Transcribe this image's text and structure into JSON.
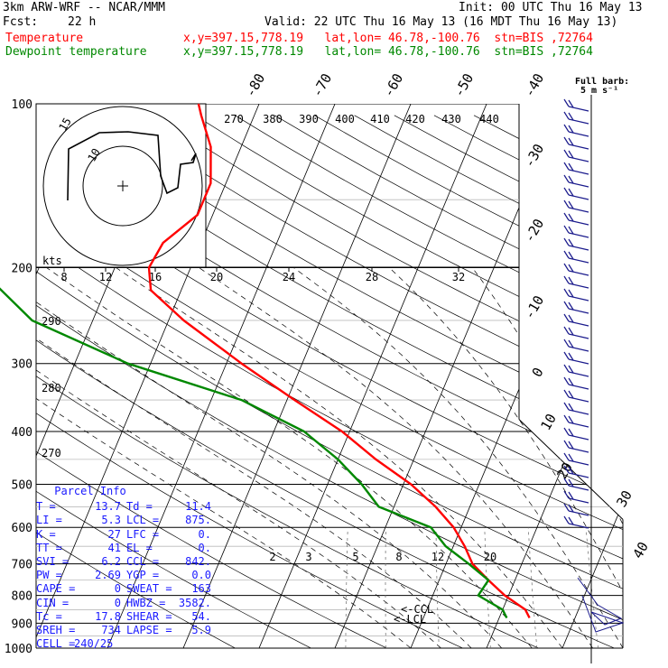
{
  "header": {
    "model": "3km ARW-WRF -- NCAR/MMM",
    "init": "Init: 00 UTC Thu 16 May 13",
    "fcst_label": "Fcst:",
    "fcst_value": "22 h",
    "valid": "Valid: 22 UTC Thu 16 May 13 (16 MDT Thu 16 May 13)",
    "temp_label": "Temperature",
    "temp_info": "x,y=397.15,778.19   lat,lon= 46.78,-100.76  stn=BIS ,72764",
    "dew_label": "Dewpoint temperature",
    "dew_info": "x,y=397.15,778.19   lat,lon= 46.78,-100.76  stn=BIS ,72764"
  },
  "barb_legend": {
    "line1": "Full barb:",
    "line2": "5 m s⁻¹"
  },
  "parcel_info": {
    "title": "Parcel Info",
    "rows": [
      {
        "l1": "T",
        "v1": "13.7",
        "l2": "Td",
        "v2": "11.4"
      },
      {
        "l1": "LI",
        "v1": "5.3",
        "l2": "LCL",
        "v2": "875."
      },
      {
        "l1": "K",
        "v1": "27",
        "l2": "LFC",
        "v2": "0."
      },
      {
        "l1": "TT",
        "v1": "41",
        "l2": "EL",
        "v2": "0."
      },
      {
        "l1": "SVI",
        "v1": "6.2",
        "l2": "CCL",
        "v2": "842."
      },
      {
        "l1": "PW",
        "v1": "2.69",
        "l2": "YGP",
        "v2": "0.0"
      },
      {
        "l1": "CAPE",
        "v1": "0",
        "l2": "SWEAT",
        "v2": "163"
      },
      {
        "l1": "CIN",
        "v1": "0",
        "l2": "HWBZ",
        "v2": "3582."
      },
      {
        "l1": "Tc",
        "v1": "17.8",
        "l2": "SHEAR",
        "v2": "54."
      },
      {
        "l1": "SREH",
        "v1": "734",
        "l2": "LAPSE",
        "v2": "5.9"
      },
      {
        "l1": "CELL",
        "v1": "240/25",
        "l2": "",
        "v2": ""
      }
    ]
  },
  "colors": {
    "temperature": "#ff0000",
    "dewpoint": "#008800",
    "axes": "#000000",
    "parcel_text": "#1a1aff",
    "barbs": "#1a1a8c"
  },
  "chart_data": {
    "type": "line",
    "chart_kind": "skew-T log-P sounding",
    "y_axis_log": true,
    "pressure_ticks_hPa": [
      100,
      200,
      300,
      400,
      500,
      600,
      700,
      800,
      900,
      1000
    ],
    "ylim_hPa": [
      1000,
      100
    ],
    "isotherm_labels_C": [
      "-80",
      "-70",
      "-60",
      "-50",
      "-40",
      "-30",
      "-20",
      "-10",
      "0",
      "10",
      "20",
      "30",
      "40"
    ],
    "theta_labels_K": [
      "270",
      "380",
      "390",
      "400",
      "410",
      "420",
      "430",
      "440"
    ],
    "dry_adiabat_labels_K": [
      "290",
      "280",
      "270"
    ],
    "mixing_ratio_labels": [
      "2",
      "3",
      "5",
      "8",
      "12",
      "20"
    ],
    "annotations": [
      "<-CCL",
      "<-LCL"
    ],
    "hodograph": {
      "speed_unit": "kts",
      "speed_ticks": [
        "8",
        "12",
        "16",
        "20",
        "24",
        "28",
        "32"
      ],
      "ring_labels": [
        "15",
        "10"
      ]
    },
    "series": [
      {
        "name": "Temperature",
        "color": "#ff0000",
        "points": [
          {
            "p": 880,
            "t": 14.0
          },
          {
            "p": 850,
            "t": 13.0
          },
          {
            "p": 800,
            "t": 9.5
          },
          {
            "p": 750,
            "t": 6.5
          },
          {
            "p": 700,
            "t": 3.5
          },
          {
            "p": 650,
            "t": 1.5
          },
          {
            "p": 600,
            "t": -1.0
          },
          {
            "p": 550,
            "t": -4.5
          },
          {
            "p": 500,
            "t": -9.0
          },
          {
            "p": 450,
            "t": -15.0
          },
          {
            "p": 400,
            "t": -21.0
          },
          {
            "p": 350,
            "t": -29.0
          },
          {
            "p": 300,
            "t": -38.0
          },
          {
            "p": 250,
            "t": -48.0
          },
          {
            "p": 220,
            "t": -54.0
          },
          {
            "p": 200,
            "t": -55.5
          },
          {
            "p": 180,
            "t": -55.0
          },
          {
            "p": 160,
            "t": -52.0
          },
          {
            "p": 140,
            "t": -52.0
          },
          {
            "p": 120,
            "t": -54.0
          },
          {
            "p": 105,
            "t": -57.0
          },
          {
            "p": 100,
            "t": -58.0
          }
        ]
      },
      {
        "name": "Dewpoint temperature",
        "color": "#008800",
        "points": [
          {
            "p": 880,
            "t": 11.0
          },
          {
            "p": 850,
            "t": 10.0
          },
          {
            "p": 800,
            "t": 6.0
          },
          {
            "p": 750,
            "t": 6.5
          },
          {
            "p": 700,
            "t": 3.0
          },
          {
            "p": 650,
            "t": -1.0
          },
          {
            "p": 600,
            "t": -4.0
          },
          {
            "p": 550,
            "t": -12.0
          },
          {
            "p": 500,
            "t": -15.5
          },
          {
            "p": 450,
            "t": -20.0
          },
          {
            "p": 400,
            "t": -26.0
          },
          {
            "p": 350,
            "t": -36.0
          },
          {
            "p": 300,
            "t": -53.0
          },
          {
            "p": 250,
            "t": -68.0
          },
          {
            "p": 200,
            "t": -78.0
          },
          {
            "p": 150,
            "t": -85.0
          },
          {
            "p": 120,
            "t": -86.0
          },
          {
            "p": 100,
            "t": -87.0
          }
        ]
      }
    ]
  }
}
